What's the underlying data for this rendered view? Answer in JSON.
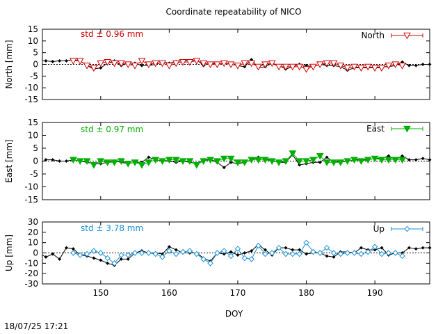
{
  "title": "Coordinate repeatability of NICO",
  "timestamp": "18/07/25 17:21",
  "chart_data": [
    {
      "type": "line",
      "id": "north",
      "ylabel": "North [mm]",
      "legend": "North",
      "std_label": "std ± 0.96 mm",
      "color": "#d00000",
      "marker": "triangle-down-open",
      "xlim": [
        141.5,
        198
      ],
      "ylim": [
        -15,
        15
      ],
      "yticks": [
        -15,
        -10,
        -5,
        0,
        5,
        10,
        15
      ],
      "x": [
        141,
        142,
        143,
        144,
        145,
        146,
        147,
        148,
        149,
        150,
        151,
        152,
        153,
        154,
        155,
        156,
        157,
        158,
        159,
        160,
        161,
        162,
        163,
        164,
        165,
        166,
        167,
        168,
        169,
        170,
        171,
        172,
        173,
        174,
        175,
        176,
        177,
        178,
        179,
        180,
        181,
        182,
        183,
        184,
        185,
        186,
        187,
        188,
        189,
        190,
        191,
        192,
        193,
        194,
        195,
        196,
        197,
        198
      ],
      "values": [
        1.5,
        1.5,
        1.2,
        1.5,
        1.5,
        2,
        1.5,
        -0.5,
        -2,
        -1.5,
        0.5,
        1.5,
        -0.5,
        0.5,
        0.5,
        -0.5,
        -0.5,
        0,
        1,
        0.5,
        1.2,
        1.5,
        1.5,
        2,
        -0.5,
        0.5,
        0,
        0.5,
        0,
        -0.5,
        -1,
        2,
        -1.5,
        -1,
        0.5,
        -0.5,
        -2,
        -1,
        0,
        -0.5,
        -1,
        0,
        -0.5,
        -0.5,
        -1,
        -2.5,
        -1.5,
        -1.5,
        -1.5,
        -1.5,
        -1,
        -1,
        -0.5,
        1,
        -0.5,
        -0.5,
        0,
        0
      ],
      "model_x": [
        146,
        147,
        148,
        149,
        150,
        151,
        152,
        153,
        154,
        155,
        156,
        157,
        158,
        159,
        160,
        161,
        162,
        163,
        164,
        165,
        166,
        167,
        168,
        169,
        170,
        171,
        172,
        173,
        174,
        175,
        176,
        177,
        178,
        179,
        180,
        181,
        182,
        183,
        184,
        185,
        186,
        187,
        188,
        189,
        190,
        191,
        192,
        193,
        194
      ],
      "model_values": [
        1.5,
        1.5,
        -0.5,
        -1.5,
        0.5,
        1,
        0.5,
        0.5,
        0,
        -0.5,
        1.5,
        0,
        0.5,
        0.5,
        -0.5,
        0.5,
        1,
        1,
        1.5,
        0.5,
        0,
        0,
        0.5,
        0,
        -0.5,
        0.5,
        0.5,
        -1,
        0,
        0.5,
        -1,
        -1,
        -1,
        -1,
        -2,
        -1,
        0,
        0.5,
        0.5,
        -0.5,
        -1.5,
        -1,
        -1.5,
        -1,
        -1.5,
        -1.5,
        -0.5,
        0,
        -0.5
      ]
    },
    {
      "type": "line",
      "id": "east",
      "ylabel": "East [mm]",
      "legend": "East",
      "std_label": "std ± 0.97 mm",
      "color": "#00b000",
      "marker": "triangle-down-filled",
      "xlim": [
        141.5,
        198
      ],
      "ylim": [
        -15,
        15
      ],
      "yticks": [
        -15,
        -10,
        -5,
        0,
        5,
        10,
        15
      ],
      "x": [
        141,
        142,
        143,
        144,
        145,
        146,
        147,
        148,
        149,
        150,
        151,
        152,
        153,
        154,
        155,
        156,
        157,
        158,
        159,
        160,
        161,
        162,
        163,
        164,
        165,
        166,
        167,
        168,
        169,
        170,
        171,
        172,
        173,
        174,
        175,
        176,
        177,
        178,
        179,
        180,
        181,
        182,
        183,
        184,
        185,
        186,
        187,
        188,
        189,
        190,
        191,
        192,
        193,
        194,
        195,
        196,
        197,
        198
      ],
      "values": [
        -1,
        0.5,
        0.5,
        0,
        0,
        0.5,
        0,
        -0.5,
        -1,
        -1,
        -0.5,
        0,
        -0.5,
        -1,
        -0.5,
        -0.5,
        1.5,
        0.5,
        0,
        0,
        -0.5,
        0,
        -0.5,
        -1,
        0.5,
        0.5,
        -0.5,
        -2.5,
        -0.5,
        -1,
        -0.5,
        0.5,
        1.5,
        1,
        0,
        -0.5,
        -0.5,
        2.5,
        -1.5,
        -1,
        -0.5,
        -0.5,
        1.5,
        -0.5,
        0,
        0,
        0.5,
        0.5,
        0.5,
        1,
        1,
        2,
        0.5,
        2,
        0.5,
        0.5,
        1,
        0.5
      ],
      "model_x": [
        146,
        147,
        148,
        149,
        150,
        151,
        152,
        153,
        154,
        155,
        156,
        157,
        158,
        159,
        160,
        161,
        162,
        163,
        164,
        165,
        166,
        167,
        168,
        169,
        170,
        171,
        172,
        173,
        174,
        175,
        176,
        177,
        178,
        179,
        180,
        181,
        182,
        183,
        184,
        185,
        186,
        187,
        188,
        189,
        190,
        191,
        192,
        193,
        194
      ],
      "model_values": [
        0.5,
        0,
        0,
        -1.5,
        0,
        -0.5,
        -0.5,
        0,
        -1,
        -0.5,
        -1.5,
        -0.5,
        0.5,
        0,
        0.5,
        0.5,
        0,
        0,
        -1.5,
        0,
        0.5,
        0,
        1,
        1,
        -0.5,
        -0.5,
        0.5,
        0.5,
        0.5,
        0,
        -0.5,
        0,
        3,
        0,
        0,
        0.5,
        2,
        -0.5,
        -0.5,
        -0.5,
        0,
        0.5,
        0,
        0.5,
        1,
        0.5,
        0.5,
        0.5,
        0.5
      ]
    },
    {
      "type": "line",
      "id": "up",
      "ylabel": "Up [mm]",
      "legend": "Up",
      "std_label": "std ± 3.78 mm",
      "color": "#1a8fd6",
      "marker": "diamond-open",
      "xlim": [
        141.5,
        198
      ],
      "ylim": [
        -30,
        30
      ],
      "yticks": [
        -30,
        -20,
        -10,
        0,
        10,
        20,
        30
      ],
      "xticks": [
        150,
        160,
        170,
        180,
        190
      ],
      "xlabel": "DOY",
      "x": [
        141,
        142,
        143,
        144,
        145,
        146,
        147,
        148,
        149,
        150,
        151,
        152,
        153,
        154,
        155,
        156,
        157,
        158,
        159,
        160,
        161,
        162,
        163,
        164,
        165,
        166,
        167,
        168,
        169,
        170,
        171,
        172,
        173,
        174,
        175,
        176,
        177,
        178,
        179,
        180,
        181,
        182,
        183,
        184,
        185,
        186,
        187,
        188,
        189,
        190,
        191,
        192,
        193,
        194,
        195,
        196,
        197,
        198
      ],
      "values": [
        0,
        -4,
        -1,
        -6,
        5,
        4,
        -2,
        -3,
        -5,
        -7,
        -10,
        -12,
        -6,
        -6,
        0,
        2,
        0,
        0,
        -1,
        6,
        3,
        0,
        0,
        0,
        -5,
        -8,
        0,
        -1,
        1,
        -2,
        0,
        2,
        8,
        3,
        -2,
        5,
        5,
        3,
        3,
        -1,
        0,
        0,
        -3,
        -4,
        1,
        1,
        0,
        5,
        3,
        3,
        5,
        -2,
        0,
        0,
        5,
        4,
        5,
        5
      ],
      "model_x": [
        146,
        147,
        148,
        149,
        150,
        151,
        152,
        153,
        154,
        155,
        156,
        157,
        158,
        159,
        160,
        161,
        162,
        163,
        164,
        165,
        166,
        167,
        168,
        169,
        170,
        171,
        172,
        173,
        174,
        175,
        176,
        177,
        178,
        179,
        180,
        181,
        182,
        183,
        184,
        185,
        186,
        187,
        188,
        189,
        190,
        191,
        192,
        193,
        194
      ],
      "model_values": [
        0,
        -2,
        -1,
        2,
        0,
        -5,
        -10,
        -2,
        -2,
        0,
        0,
        0,
        -1,
        -4,
        2,
        -1,
        1,
        2,
        -1,
        -6,
        -10,
        0,
        2,
        -3,
        4,
        -5,
        -6,
        7,
        -1,
        0,
        5,
        -1,
        -1,
        -1,
        10,
        1,
        0,
        5,
        0,
        -1,
        0,
        0,
        -1,
        1,
        6,
        -1,
        0,
        0,
        -3
      ]
    }
  ]
}
